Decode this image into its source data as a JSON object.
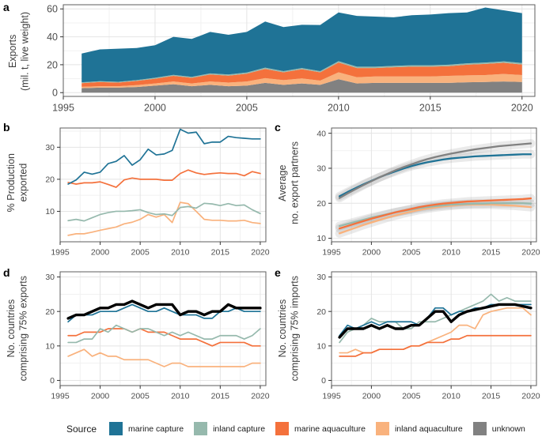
{
  "figure": {
    "panels": [
      {
        "letter": "a"
      },
      {
        "letter": "b"
      },
      {
        "letter": "c"
      },
      {
        "letter": "d"
      },
      {
        "letter": "e"
      }
    ],
    "legend": {
      "title": "Source",
      "items": [
        {
          "label": "marine capture",
          "key": "marine_capture"
        },
        {
          "label": "inland capture",
          "key": "inland_capture"
        },
        {
          "label": "marine aquaculture",
          "key": "marine_aquaculture"
        },
        {
          "label": "inland aquaculture",
          "key": "inland_aquaculture"
        },
        {
          "label": "unknown",
          "key": "unknown"
        }
      ]
    },
    "colors": {
      "marine_capture": "#1f7396",
      "inland_capture": "#96b9ad",
      "marine_aquaculture": "#f4713c",
      "inland_aquaculture": "#f9b27d",
      "unknown": "#818181",
      "total": "#000000"
    }
  },
  "chart_data": [
    {
      "id": "a",
      "type": "stacked-area",
      "ylabel_lines": [
        "Exports",
        "(mil. t, live weight)"
      ],
      "x": [
        1996,
        1997,
        1998,
        1999,
        2000,
        2001,
        2002,
        2003,
        2004,
        2005,
        2006,
        2007,
        2008,
        2009,
        2010,
        2011,
        2012,
        2013,
        2014,
        2015,
        2016,
        2017,
        2018,
        2019,
        2020
      ],
      "xlim": [
        1995,
        2020.7
      ],
      "xticks": [
        1995,
        2000,
        2005,
        2010,
        2015,
        2020
      ],
      "xminor": [
        1997.5,
        2002.5,
        2007.5,
        2012.5,
        2017.5
      ],
      "ylim": [
        -2.7,
        63
      ],
      "yticks": [
        0,
        20,
        40,
        60
      ],
      "yminor": [
        10,
        30,
        50
      ],
      "series": [
        {
          "key": "unknown",
          "values": [
            3.2,
            3.6,
            3.6,
            4.0,
            5.0,
            6.0,
            4.6,
            5.6,
            4.6,
            5.0,
            7.0,
            5.6,
            6.6,
            5.6,
            9.6,
            6.6,
            7.0,
            7.0,
            7.0,
            7.0,
            7.0,
            7.4,
            7.6,
            8.0,
            7.6
          ]
        },
        {
          "key": "inland_aquaculture",
          "values": [
            1.0,
            1.0,
            1.0,
            1.4,
            1.6,
            2.0,
            2.0,
            2.4,
            2.6,
            3.0,
            3.4,
            3.4,
            3.6,
            3.0,
            5.0,
            4.4,
            4.6,
            4.6,
            4.6,
            4.6,
            5.0,
            5.0,
            5.0,
            5.4,
            5.0
          ]
        },
        {
          "key": "marine_aquaculture",
          "values": [
            2.6,
            3.0,
            2.6,
            3.0,
            3.4,
            4.0,
            4.0,
            5.0,
            5.0,
            5.6,
            6.6,
            5.6,
            6.6,
            6.0,
            7.0,
            6.6,
            6.0,
            6.6,
            7.0,
            7.0,
            7.0,
            7.6,
            8.0,
            8.0,
            7.6
          ]
        },
        {
          "key": "inland_capture",
          "values": [
            0.6,
            0.6,
            0.6,
            0.6,
            0.7,
            0.7,
            0.7,
            0.8,
            0.8,
            0.8,
            0.9,
            0.8,
            0.8,
            0.8,
            1.0,
            1.0,
            1.0,
            1.0,
            1.0,
            1.0,
            1.0,
            1.0,
            1.0,
            1.0,
            1.0
          ]
        },
        {
          "key": "marine_capture",
          "values": [
            20.6,
            22.8,
            23.7,
            23.0,
            23.3,
            27.3,
            27.2,
            29.7,
            28.5,
            29.1,
            33.1,
            31.6,
            31.0,
            33.1,
            34.9,
            36.4,
            35.9,
            34.8,
            35.9,
            36.4,
            37.0,
            36.5,
            39.4,
            36.6,
            35.8
          ]
        }
      ]
    },
    {
      "id": "b",
      "type": "line",
      "lw": 1.7,
      "ylabel_lines": [
        "% Production",
        "exported"
      ],
      "x": [
        1996,
        1997,
        1998,
        1999,
        2000,
        2001,
        2002,
        2003,
        2004,
        2005,
        2006,
        2007,
        2008,
        2009,
        2010,
        2011,
        2012,
        2013,
        2014,
        2015,
        2016,
        2017,
        2018,
        2019,
        2020
      ],
      "xlim": [
        1995,
        2020.7
      ],
      "xticks": [
        1995,
        2000,
        2005,
        2010,
        2015,
        2020
      ],
      "xminor": [
        1997.5,
        2002.5,
        2007.5,
        2012.5,
        2017.5
      ],
      "ylim": [
        0.5,
        36
      ],
      "yticks": [
        10,
        20,
        30
      ],
      "yminor": [
        5,
        15,
        25,
        35
      ],
      "series": [
        {
          "key": "inland_aquaculture",
          "values": [
            2.5,
            3.0,
            3.0,
            3.5,
            4.1,
            4.6,
            5.1,
            6.1,
            6.6,
            7.5,
            9.0,
            8.2,
            9.0,
            6.5,
            12.8,
            12.4,
            10.0,
            7.5,
            7.2,
            7.2,
            7.0,
            7.0,
            7.2,
            6.5,
            6.2
          ]
        },
        {
          "key": "inland_capture",
          "values": [
            7.1,
            7.5,
            7.0,
            8.0,
            9.0,
            9.6,
            10.0,
            10.0,
            10.2,
            10.5,
            9.6,
            9.0,
            9.2,
            8.7,
            11.2,
            11.5,
            11.0,
            12.5,
            12.3,
            11.8,
            12.4,
            11.8,
            12.0,
            10.5,
            9.3
          ]
        },
        {
          "key": "marine_aquaculture",
          "values": [
            19.0,
            18.5,
            18.9,
            18.9,
            19.2,
            18.4,
            17.5,
            19.8,
            20.4,
            20.0,
            20.0,
            20.0,
            19.7,
            19.7,
            21.8,
            22.9,
            22.0,
            21.5,
            21.8,
            22.0,
            21.8,
            21.8,
            21.1,
            22.4,
            21.8
          ]
        },
        {
          "key": "marine_capture",
          "values": [
            18.5,
            19.8,
            22.2,
            21.6,
            22.2,
            24.9,
            25.6,
            27.4,
            24.4,
            26.1,
            29.4,
            27.6,
            27.9,
            29.0,
            35.6,
            34.4,
            34.7,
            31.1,
            31.6,
            31.6,
            33.4,
            33.0,
            32.8,
            32.6,
            32.6
          ]
        }
      ]
    },
    {
      "id": "c",
      "type": "line",
      "band": true,
      "lw": 2.3,
      "ylabel_lines": [
        "Average",
        "no. export partners"
      ],
      "x": [
        1996,
        1997,
        1998,
        1999,
        2000,
        2001,
        2002,
        2003,
        2004,
        2005,
        2006,
        2007,
        2008,
        2009,
        2010,
        2011,
        2012,
        2013,
        2014,
        2015,
        2016,
        2017,
        2018,
        2019,
        2020
      ],
      "xlim": [
        1995,
        2020.7
      ],
      "xticks": [
        1995,
        2000,
        2005,
        2010,
        2015,
        2020
      ],
      "xminor": [
        1997.5,
        2002.5,
        2007.5,
        2012.5,
        2017.5
      ],
      "ylim": [
        9,
        41.5
      ],
      "yticks": [
        10,
        20,
        30,
        40
      ],
      "yminor": [
        15,
        25,
        35
      ],
      "series": [
        {
          "key": "inland_aquaculture",
          "values": [
            11.4,
            12.2,
            13.0,
            13.8,
            14.5,
            15.2,
            15.9,
            16.5,
            17.1,
            17.6,
            18.1,
            18.5,
            18.8,
            19.1,
            19.3,
            19.5,
            19.6,
            19.6,
            19.6,
            19.6,
            19.5,
            19.4,
            19.3,
            19.1,
            18.9
          ]
        },
        {
          "key": "inland_capture",
          "values": [
            13.5,
            14.1,
            14.7,
            15.3,
            15.9,
            16.4,
            16.9,
            17.4,
            17.8,
            18.2,
            18.6,
            18.9,
            19.2,
            19.4,
            19.6,
            19.7,
            19.8,
            19.9,
            19.9,
            20.0,
            20.0,
            20.0,
            20.0,
            20.0,
            19.9
          ]
        },
        {
          "key": "marine_aquaculture",
          "values": [
            12.8,
            13.5,
            14.2,
            14.9,
            15.6,
            16.2,
            16.8,
            17.4,
            17.9,
            18.4,
            18.9,
            19.3,
            19.6,
            19.9,
            20.1,
            20.3,
            20.5,
            20.6,
            20.7,
            20.8,
            20.9,
            21.0,
            21.1,
            21.2,
            21.4
          ]
        },
        {
          "key": "marine_capture",
          "values": [
            22.0,
            23.2,
            24.3,
            25.4,
            26.4,
            27.4,
            28.3,
            29.1,
            29.9,
            30.6,
            31.2,
            31.7,
            32.1,
            32.5,
            32.8,
            33.0,
            33.2,
            33.4,
            33.5,
            33.6,
            33.7,
            33.8,
            33.9,
            34.0,
            34.0
          ]
        },
        {
          "key": "unknown",
          "values": [
            21.5,
            22.8,
            24.0,
            25.2,
            26.3,
            27.4,
            28.4,
            29.4,
            30.3,
            31.1,
            31.9,
            32.6,
            33.2,
            33.7,
            34.2,
            34.6,
            35.0,
            35.4,
            35.7,
            36.0,
            36.3,
            36.5,
            36.7,
            36.9,
            37.1
          ]
        }
      ]
    },
    {
      "id": "d",
      "type": "line",
      "lw": 1.7,
      "ylabel_lines": [
        "No. countries",
        "comprising 75% exports"
      ],
      "x": [
        1996,
        1997,
        1998,
        1999,
        2000,
        2001,
        2002,
        2003,
        2004,
        2005,
        2006,
        2007,
        2008,
        2009,
        2010,
        2011,
        2012,
        2013,
        2014,
        2015,
        2016,
        2017,
        2018,
        2019,
        2020
      ],
      "xlim": [
        1995,
        2020.7
      ],
      "xticks": [
        1995,
        2000,
        2005,
        2010,
        2015,
        2020
      ],
      "xminor": [
        1997.5,
        2002.5,
        2007.5,
        2012.5,
        2017.5
      ],
      "ylim": [
        -1.5,
        31.5
      ],
      "yticks": [
        0,
        10,
        20,
        30
      ],
      "yminor": [
        5,
        15,
        25
      ],
      "series": [
        {
          "key": "inland_aquaculture",
          "values": [
            7,
            8,
            9,
            7,
            8,
            7,
            7,
            6,
            6,
            6,
            6,
            5,
            4,
            5,
            5,
            4,
            4,
            4,
            4,
            4,
            4,
            4,
            4,
            5,
            5
          ]
        },
        {
          "key": "marine_aquaculture",
          "values": [
            13,
            13,
            14,
            14,
            14,
            15,
            15,
            15,
            14,
            15,
            14,
            14,
            14,
            13,
            12,
            12,
            12,
            11,
            10,
            11,
            11,
            11,
            11,
            10,
            10
          ]
        },
        {
          "key": "inland_capture",
          "values": [
            11,
            11,
            12,
            12,
            15,
            14,
            16,
            15,
            14,
            15,
            15,
            14,
            13,
            14,
            13,
            14,
            13,
            12,
            12,
            13,
            13,
            13,
            12,
            13,
            15
          ]
        },
        {
          "key": "marine_capture",
          "values": [
            17,
            19,
            19,
            19,
            20,
            20,
            20,
            21,
            22,
            21,
            20,
            20,
            21,
            20,
            19,
            19,
            19,
            18,
            18,
            20,
            20,
            21,
            20,
            20,
            20
          ]
        },
        {
          "key": "total",
          "lw": 3.4,
          "values": [
            18,
            19,
            19,
            20,
            21,
            21,
            22,
            22,
            23,
            22,
            21,
            22,
            22,
            22,
            19,
            20,
            20,
            19,
            20,
            20,
            22,
            21,
            21,
            21,
            21
          ]
        }
      ]
    },
    {
      "id": "e",
      "type": "line",
      "lw": 1.7,
      "ylabel_lines": [
        "No. countries",
        "comprising 75% imports"
      ],
      "x": [
        1996,
        1997,
        1998,
        1999,
        2000,
        2001,
        2002,
        2003,
        2004,
        2005,
        2006,
        2007,
        2008,
        2009,
        2010,
        2011,
        2012,
        2013,
        2014,
        2015,
        2016,
        2017,
        2018,
        2019,
        2020
      ],
      "xlim": [
        1995,
        2020.7
      ],
      "xticks": [
        1995,
        2000,
        2005,
        2010,
        2015,
        2020
      ],
      "xminor": [
        1997.5,
        2002.5,
        2007.5,
        2012.5,
        2017.5
      ],
      "ylim": [
        -1.5,
        31.5
      ],
      "yticks": [
        0,
        10,
        20,
        30
      ],
      "yminor": [
        5,
        15,
        25
      ],
      "series": [
        {
          "key": "inland_aquaculture",
          "values": [
            8,
            8,
            9,
            8,
            8,
            9,
            9,
            9,
            9,
            10,
            10,
            11,
            12,
            13,
            14,
            16,
            16,
            15,
            19,
            20,
            20.5,
            21,
            21,
            21,
            19
          ]
        },
        {
          "key": "marine_aquaculture",
          "values": [
            7,
            7,
            7,
            8,
            8,
            9,
            9,
            9,
            9,
            10,
            10,
            11,
            11,
            11,
            12,
            12,
            13,
            13,
            13,
            13,
            13,
            13,
            13,
            13,
            13
          ]
        },
        {
          "key": "inland_capture",
          "values": [
            11,
            14,
            15,
            16,
            18,
            17,
            17,
            17,
            15,
            15,
            17,
            17,
            17,
            18,
            19,
            20,
            21,
            22,
            23,
            25,
            23,
            24,
            23,
            23,
            23
          ]
        },
        {
          "key": "marine_capture",
          "values": [
            13,
            16,
            15,
            16,
            17,
            16,
            17,
            17,
            17,
            17,
            16,
            18,
            21,
            21,
            19,
            20,
            20,
            21,
            21,
            22,
            22,
            22,
            22,
            22,
            22
          ]
        },
        {
          "key": "total",
          "lw": 3.4,
          "values": [
            12.5,
            15,
            15,
            15,
            16,
            15,
            16,
            15,
            15,
            16,
            16,
            18,
            20,
            20,
            17,
            19,
            20,
            20.5,
            21,
            21.5,
            22,
            22,
            22,
            21.5,
            21
          ]
        }
      ]
    }
  ]
}
